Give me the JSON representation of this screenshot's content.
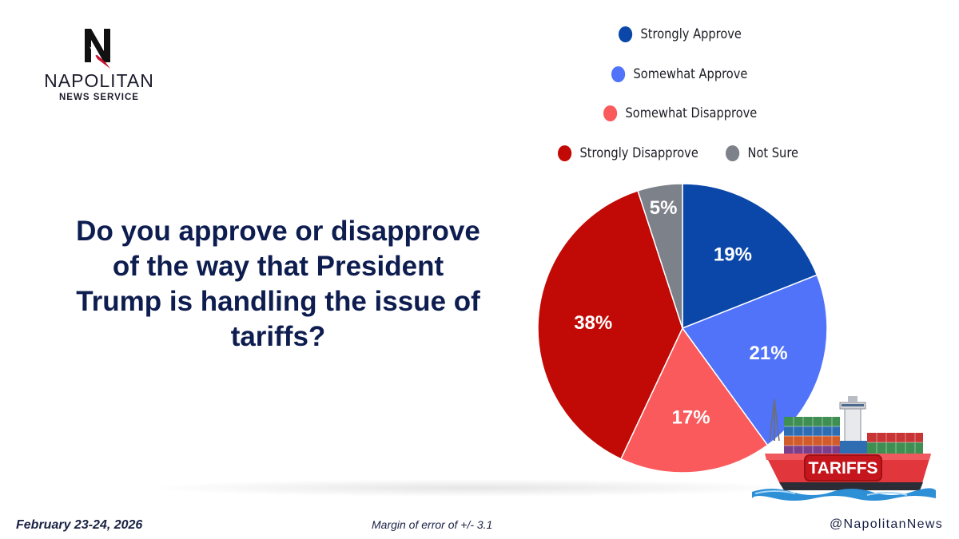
{
  "brand": {
    "name": "NAPOLITAN",
    "subtitle": "NEWS SERVICE"
  },
  "question": "Do you approve or disapprove of the way that President Trump is handling the issue of tariffs?",
  "chart_data": {
    "type": "pie",
    "categories": [
      "Strongly Approve",
      "Somewhat Approve",
      "Somewhat Disapprove",
      "Strongly Disapprove",
      "Not Sure"
    ],
    "values": [
      19,
      21,
      17,
      38,
      5
    ],
    "labels": [
      "19%",
      "21%",
      "17%",
      "38%",
      "5%"
    ],
    "colors": [
      "#0a47a9",
      "#5073fa",
      "#fa5a5c",
      "#c10a06",
      "#7d8189"
    ],
    "title": "",
    "legend": "top-right"
  },
  "illustration": {
    "label": "TARIFFS",
    "icon": "cargo-ship-icon"
  },
  "footer": {
    "date": "February 23-24, 2026",
    "margin": "Margin of error of +/- 3.1",
    "handle": "@NapolitanNews"
  }
}
